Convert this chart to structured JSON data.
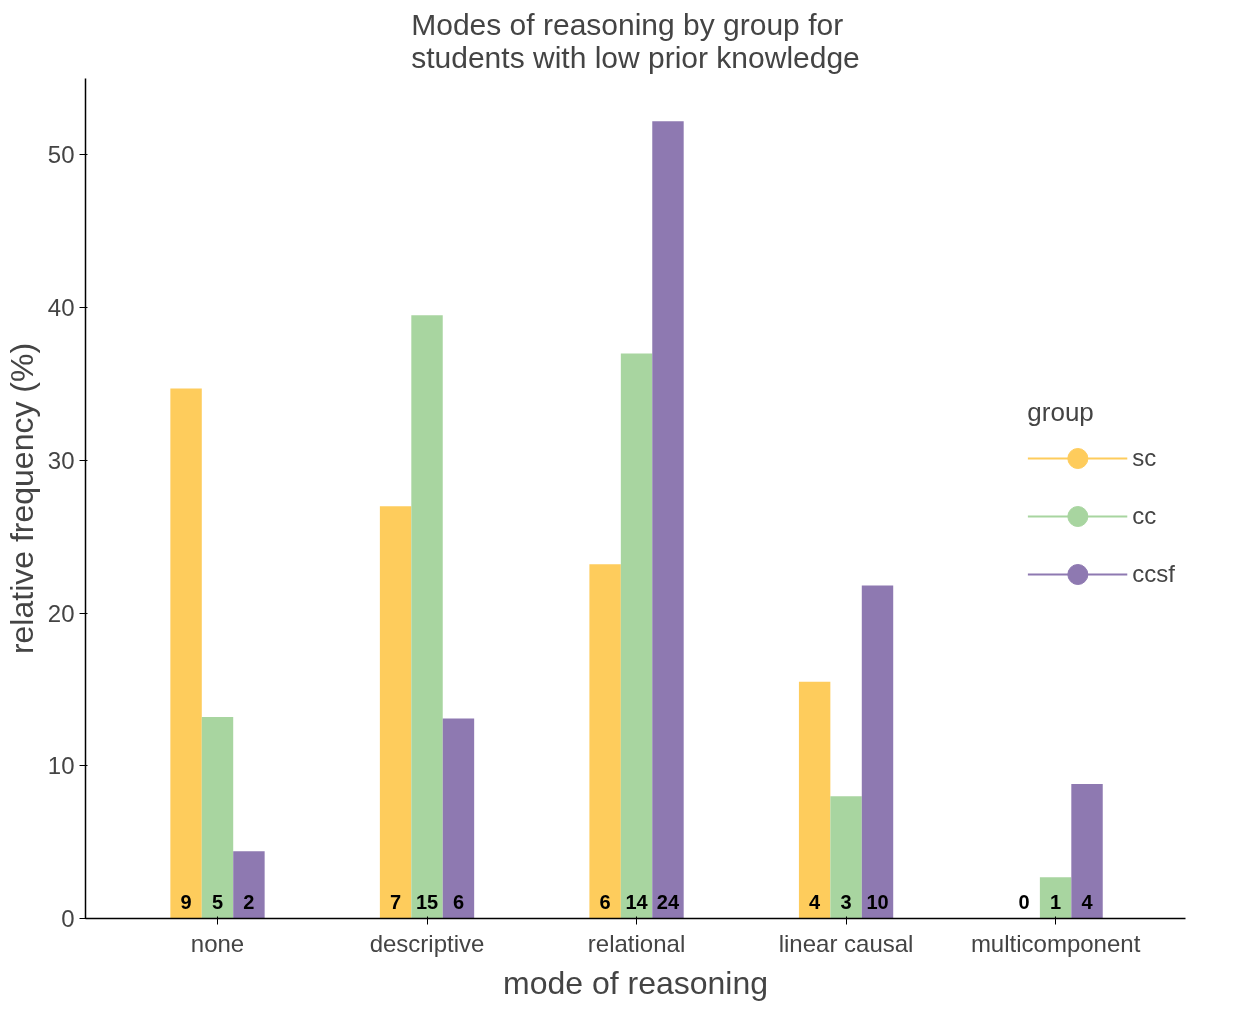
{
  "chart_data": {
    "type": "bar",
    "title": "Modes of reasoning by group for\nstudents with low prior knowledge",
    "xlabel": "mode of reasoning",
    "ylabel": "relative frequency (%)",
    "legend_title": "group",
    "categories": [
      "none",
      "descriptive",
      "relational",
      "linear causal",
      "multicomponent"
    ],
    "series": [
      {
        "name": "sc",
        "color": "#fecc5c",
        "values": [
          34.7,
          27.0,
          23.2,
          15.5,
          0
        ]
      },
      {
        "name": "cc",
        "color": "#a8d5a0",
        "values": [
          13.2,
          39.5,
          37.0,
          8.0,
          2.7
        ]
      },
      {
        "name": "ccsf",
        "color": "#8e79b1",
        "values": [
          4.4,
          13.1,
          52.2,
          21.8,
          8.8
        ]
      }
    ],
    "annotations": [
      {
        "text": "9",
        "x": "none",
        "y": 0
      },
      {
        "text": "5",
        "x": "none",
        "y": 0
      },
      {
        "text": "2",
        "x": "none",
        "y": 0
      },
      {
        "text": "7",
        "x": "descriptive",
        "y": 0
      },
      {
        "text": "15",
        "x": "descriptive",
        "y": 0
      },
      {
        "text": "6",
        "x": "descriptive",
        "y": 0
      },
      {
        "text": "6",
        "x": "relational",
        "y": 0
      },
      {
        "text": "14",
        "x": "relational",
        "y": 0
      },
      {
        "text": "24",
        "x": "relational",
        "y": 0
      },
      {
        "text": "4",
        "x": "linear causal",
        "y": 0
      },
      {
        "text": "3",
        "x": "linear causal",
        "y": 0
      },
      {
        "text": "10",
        "x": "linear causal",
        "y": 0
      },
      {
        "text": "0",
        "x": "multicomponent",
        "y": 0
      },
      {
        "text": "1",
        "x": "multicomponent",
        "y": 0
      },
      {
        "text": "4",
        "x": "multicomponent",
        "y": 0
      }
    ],
    "ylim": [
      0,
      55
    ],
    "yticks": [
      0,
      10,
      20,
      30,
      40,
      50
    ],
    "grid": false,
    "legend": "right"
  }
}
